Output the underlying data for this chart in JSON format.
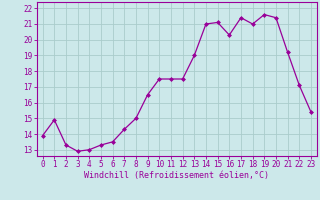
{
  "x": [
    0,
    1,
    2,
    3,
    4,
    5,
    6,
    7,
    8,
    9,
    10,
    11,
    12,
    13,
    14,
    15,
    16,
    17,
    18,
    19,
    20,
    21,
    22,
    23
  ],
  "y": [
    13.9,
    14.9,
    13.3,
    12.9,
    13.0,
    13.3,
    13.5,
    14.3,
    15.0,
    16.5,
    17.5,
    17.5,
    17.5,
    19.0,
    21.0,
    21.1,
    20.3,
    21.4,
    21.0,
    21.6,
    21.4,
    19.2,
    17.1,
    15.4
  ],
  "line_color": "#990099",
  "marker": "D",
  "marker_size": 2.0,
  "bg_color": "#cce8ea",
  "grid_color": "#aacccc",
  "ylabel_ticks": [
    13,
    14,
    15,
    16,
    17,
    18,
    19,
    20,
    21,
    22
  ],
  "xlabel": "Windchill (Refroidissement éolien,°C)",
  "ylim": [
    12.6,
    22.4
  ],
  "xlim": [
    -0.5,
    23.5
  ],
  "tick_color": "#990099",
  "label_color": "#990099",
  "font_family": "monospace",
  "tick_fontsize": 5.5,
  "xlabel_fontsize": 6.0,
  "linewidth": 0.9
}
